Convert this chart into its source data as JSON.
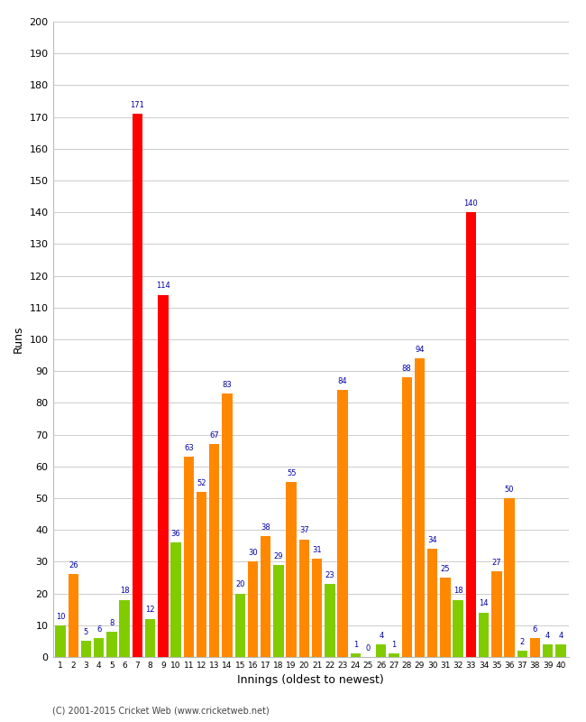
{
  "innings": [
    1,
    2,
    3,
    4,
    5,
    6,
    7,
    8,
    9,
    10,
    11,
    12,
    13,
    14,
    15,
    16,
    17,
    18,
    19,
    20,
    21,
    22,
    23,
    24,
    25,
    26,
    27,
    28,
    29,
    30,
    31,
    32,
    33,
    34,
    35,
    36,
    37,
    38,
    39,
    40
  ],
  "values": [
    10,
    26,
    5,
    6,
    8,
    18,
    171,
    12,
    114,
    36,
    63,
    52,
    67,
    83,
    20,
    30,
    38,
    29,
    55,
    37,
    31,
    23,
    84,
    1,
    0,
    4,
    1,
    88,
    94,
    34,
    25,
    18,
    140,
    14,
    27,
    50,
    2,
    6,
    4,
    4
  ],
  "colors": [
    "#80cc00",
    "#ff8800",
    "#80cc00",
    "#80cc00",
    "#80cc00",
    "#80cc00",
    "#ff0000",
    "#80cc00",
    "#ff0000",
    "#80cc00",
    "#ff8800",
    "#ff8800",
    "#ff8800",
    "#ff8800",
    "#80cc00",
    "#ff8800",
    "#ff8800",
    "#80cc00",
    "#ff8800",
    "#ff8800",
    "#ff8800",
    "#80cc00",
    "#ff8800",
    "#80cc00",
    "#80cc00",
    "#80cc00",
    "#80cc00",
    "#ff8800",
    "#ff8800",
    "#ff8800",
    "#ff8800",
    "#80cc00",
    "#ff0000",
    "#80cc00",
    "#ff8800",
    "#ff8800",
    "#80cc00",
    "#ff8800",
    "#80cc00",
    "#80cc00"
  ],
  "ylim": [
    0,
    200
  ],
  "yticks": [
    0,
    10,
    20,
    30,
    40,
    50,
    60,
    70,
    80,
    90,
    100,
    110,
    120,
    130,
    140,
    150,
    160,
    170,
    180,
    190,
    200
  ],
  "ylabel": "Runs",
  "xlabel": "Innings (oldest to newest)",
  "bg_color": "#ffffff",
  "grid_color": "#cccccc",
  "label_color": "#0000aa",
  "bar_width": 0.8,
  "footer": "(C) 2001-2015 Cricket Web (www.cricketweb.net)"
}
